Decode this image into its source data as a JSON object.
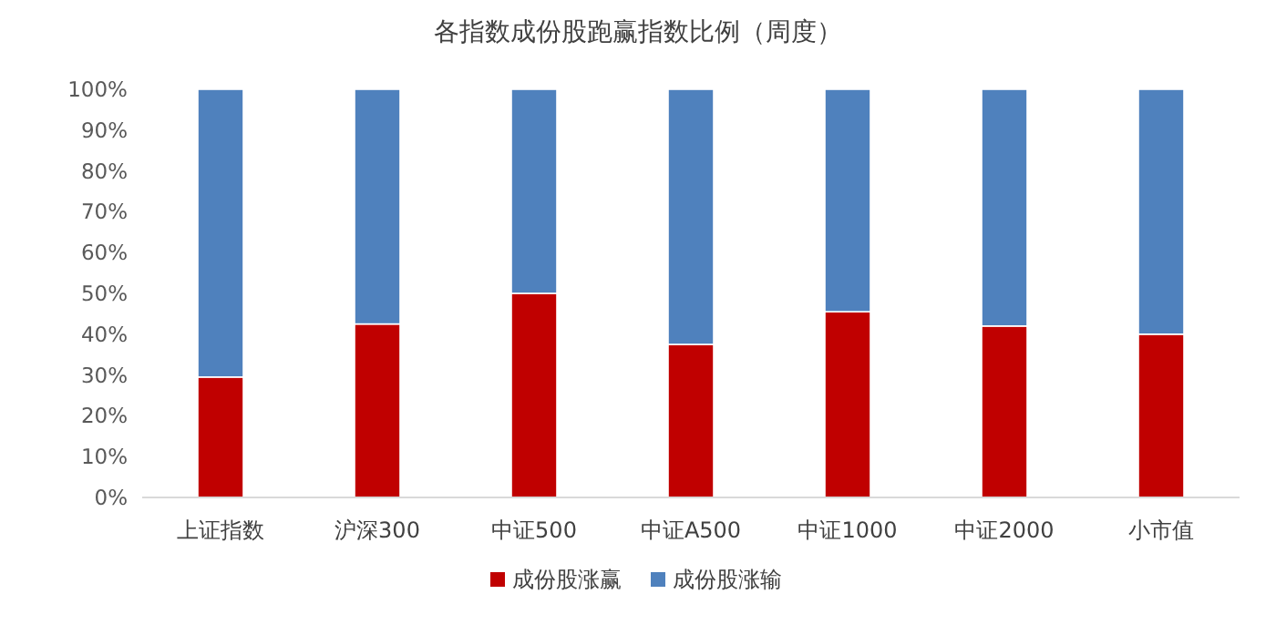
{
  "chart_data": {
    "type": "bar",
    "title": "各指数成份股跑赢指数比例（周度）",
    "stacked": true,
    "legend": "bottom",
    "grid": false,
    "categories": [
      "上证指数",
      "沪深300",
      "中证500",
      "中证A500",
      "中证1000",
      "中证2000",
      "小市值"
    ],
    "series": [
      {
        "name": "成份股涨赢",
        "color": "#c00000",
        "values": [
          29.5,
          42.5,
          50,
          37.5,
          45.5,
          42,
          40
        ]
      },
      {
        "name": "成份股涨输",
        "color": "#4f81bd",
        "values": [
          70.5,
          57.5,
          50,
          62.5,
          54.5,
          58,
          60
        ]
      }
    ],
    "ylim": [
      0,
      100
    ],
    "yticks": [
      {
        "value": 0,
        "label": "0%"
      },
      {
        "value": 10,
        "label": "10%"
      },
      {
        "value": 20,
        "label": "20%"
      },
      {
        "value": 30,
        "label": "30%"
      },
      {
        "value": 40,
        "label": "40%"
      },
      {
        "value": 50,
        "label": "50%"
      },
      {
        "value": 60,
        "label": "60%"
      },
      {
        "value": 70,
        "label": "70%"
      },
      {
        "value": 80,
        "label": "80%"
      },
      {
        "value": 90,
        "label": "90%"
      },
      {
        "value": 100,
        "label": "100%"
      }
    ]
  }
}
